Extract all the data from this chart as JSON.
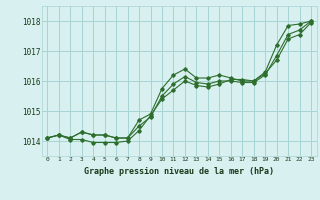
{
  "title": "Graphe pression niveau de la mer (hPa)",
  "background_color": "#d8f0f0",
  "grid_color": "#a8d4d4",
  "line_color": "#2d6e2d",
  "xlim": [
    -0.5,
    23.5
  ],
  "ylim": [
    1013.5,
    1018.5
  ],
  "yticks": [
    1014,
    1015,
    1016,
    1017,
    1018
  ],
  "xticks": [
    0,
    1,
    2,
    3,
    4,
    5,
    6,
    7,
    8,
    9,
    10,
    11,
    12,
    13,
    14,
    15,
    16,
    17,
    18,
    19,
    20,
    21,
    22,
    23
  ],
  "series": [
    [
      1014.1,
      1014.2,
      1014.1,
      1014.3,
      1014.2,
      1014.2,
      1014.1,
      1014.1,
      1014.7,
      1014.9,
      1015.75,
      1016.2,
      1016.4,
      1016.1,
      1016.1,
      1016.2,
      1016.1,
      1016.0,
      1016.0,
      1016.3,
      1017.2,
      1017.85,
      1017.9,
      1018.0
    ],
    [
      1014.1,
      1014.2,
      1014.1,
      1014.3,
      1014.2,
      1014.2,
      1014.1,
      1014.1,
      1014.5,
      1014.8,
      1015.5,
      1015.9,
      1016.15,
      1015.95,
      1015.9,
      1016.0,
      1016.0,
      1015.95,
      1015.95,
      1016.2,
      1016.85,
      1017.55,
      1017.7,
      1018.0
    ],
    [
      1014.1,
      1014.2,
      1014.05,
      1014.05,
      1013.95,
      1013.95,
      1013.95,
      1014.0,
      1014.35,
      1014.85,
      1015.4,
      1015.7,
      1016.0,
      1015.85,
      1015.8,
      1015.9,
      1016.05,
      1016.05,
      1016.0,
      1016.25,
      1016.7,
      1017.4,
      1017.55,
      1017.95
    ]
  ]
}
